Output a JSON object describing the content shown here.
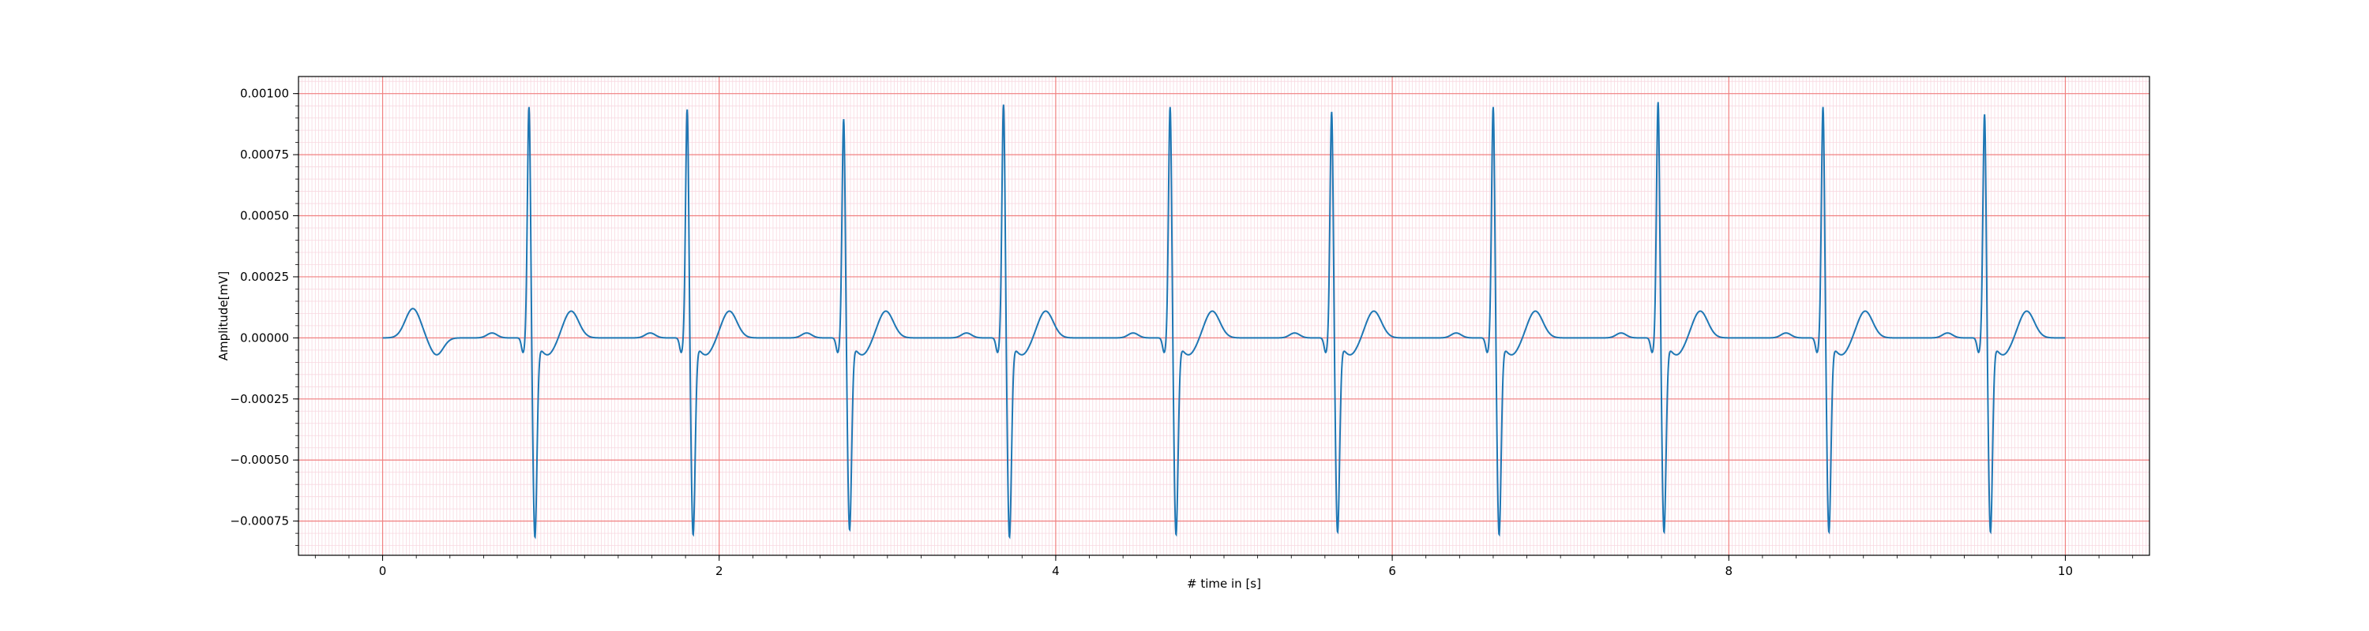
{
  "chart_data": {
    "type": "line",
    "title": "",
    "xlabel": "# time in [s]",
    "ylabel": "Amplitude[mV]",
    "xlim": [
      -0.5,
      10.5
    ],
    "ylim": [
      -0.00089,
      0.00107
    ],
    "xticks": [
      0,
      2,
      4,
      6,
      8,
      10
    ],
    "xtick_labels": [
      "0",
      "2",
      "4",
      "6",
      "8",
      "10"
    ],
    "yticks": [
      0.001,
      0.00075,
      0.0005,
      0.00025,
      0.0,
      -0.00025,
      -0.0005,
      -0.00075
    ],
    "ytick_labels": [
      "0.00100",
      "0.00075",
      "0.00050",
      "0.00025",
      "0.00000",
      "−0.00025",
      "−0.00050",
      "−0.00075"
    ],
    "grid": {
      "major": true,
      "minor": true,
      "major_color": "#f08080",
      "minor_color": "#f8d8e0"
    },
    "series": [
      {
        "color": "#1f77b4",
        "duration_s": 10.0,
        "beats": [
          {
            "t": 0.87,
            "r": 0.00096,
            "s": -0.0008
          },
          {
            "t": 1.81,
            "r": 0.00095,
            "s": -0.00079
          },
          {
            "t": 2.74,
            "r": 0.00091,
            "s": -0.00077
          },
          {
            "t": 3.69,
            "r": 0.00097,
            "s": -0.0008
          },
          {
            "t": 4.68,
            "r": 0.00096,
            "s": -0.00079
          },
          {
            "t": 5.64,
            "r": 0.00094,
            "s": -0.00078
          },
          {
            "t": 6.6,
            "r": 0.00096,
            "s": -0.00079
          },
          {
            "t": 7.58,
            "r": 0.00098,
            "s": -0.00078
          },
          {
            "t": 8.56,
            "r": 0.00096,
            "s": -0.00078
          },
          {
            "t": 9.52,
            "r": 0.00093,
            "s": -0.00078
          }
        ]
      }
    ]
  }
}
